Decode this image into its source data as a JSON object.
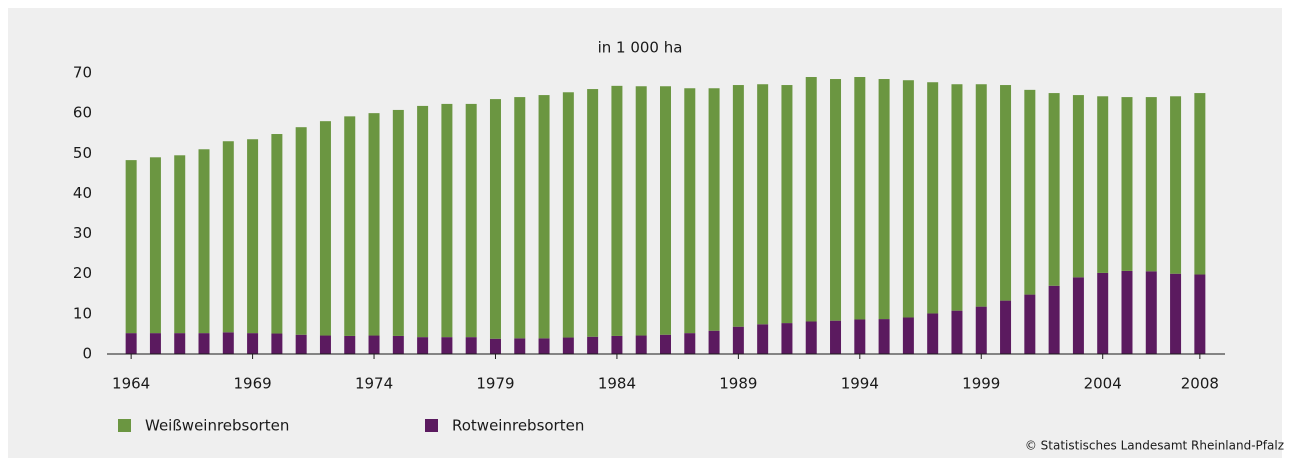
{
  "chart_data": {
    "type": "bar",
    "stacked": true,
    "title": "in 1 000 ha",
    "categories": [
      "1964",
      null,
      null,
      null,
      null,
      "1969",
      null,
      null,
      null,
      null,
      "1974",
      null,
      null,
      null,
      null,
      "1979",
      null,
      null,
      null,
      null,
      "1984",
      null,
      null,
      null,
      null,
      "1989",
      null,
      null,
      null,
      null,
      "1994",
      null,
      null,
      null,
      null,
      "1999",
      null,
      null,
      null,
      null,
      "2004",
      null,
      null,
      null,
      "2008"
    ],
    "series": [
      {
        "name": "Weißweinrebsorten",
        "color": "#6b9641",
        "values": [
          43.1,
          43.8,
          44.3,
          45.8,
          47.6,
          48.3,
          49.7,
          51.7,
          53.4,
          54.7,
          55.4,
          56.3,
          57.6,
          58.1,
          58.1,
          59.7,
          60.1,
          60.6,
          61.1,
          61.7,
          62.3,
          62.1,
          61.9,
          61,
          60.4,
          60.2,
          59.8,
          59.3,
          60.9,
          60.2,
          60.4,
          59.8,
          59.1,
          57.6,
          56.4,
          55.4,
          53.7,
          51,
          48,
          45.4,
          44,
          43.3,
          43.4,
          44.2,
          45.2
        ]
      },
      {
        "name": "Rotweinrebsorten",
        "color": "#5b1a5f",
        "values": [
          5.2,
          5.2,
          5.2,
          5.2,
          5.4,
          5.2,
          5.1,
          4.8,
          4.6,
          4.5,
          4.6,
          4.5,
          4.2,
          4.2,
          4.2,
          3.8,
          3.9,
          3.9,
          4.1,
          4.3,
          4.5,
          4.6,
          4.8,
          5.2,
          5.8,
          6.8,
          7.4,
          7.7,
          8.1,
          8.3,
          8.6,
          8.7,
          9.1,
          10.1,
          10.8,
          11.8,
          13.3,
          14.8,
          17,
          19.1,
          20.2,
          20.7,
          20.6,
          20,
          19.8
        ]
      }
    ],
    "ylim": [
      0,
      70
    ],
    "yticks": [
      0,
      10,
      20,
      30,
      40,
      50,
      60,
      70
    ],
    "grid": false,
    "legend": "bottom",
    "source": "© Statistisches Landesamt Rheinland-Pfalz"
  }
}
